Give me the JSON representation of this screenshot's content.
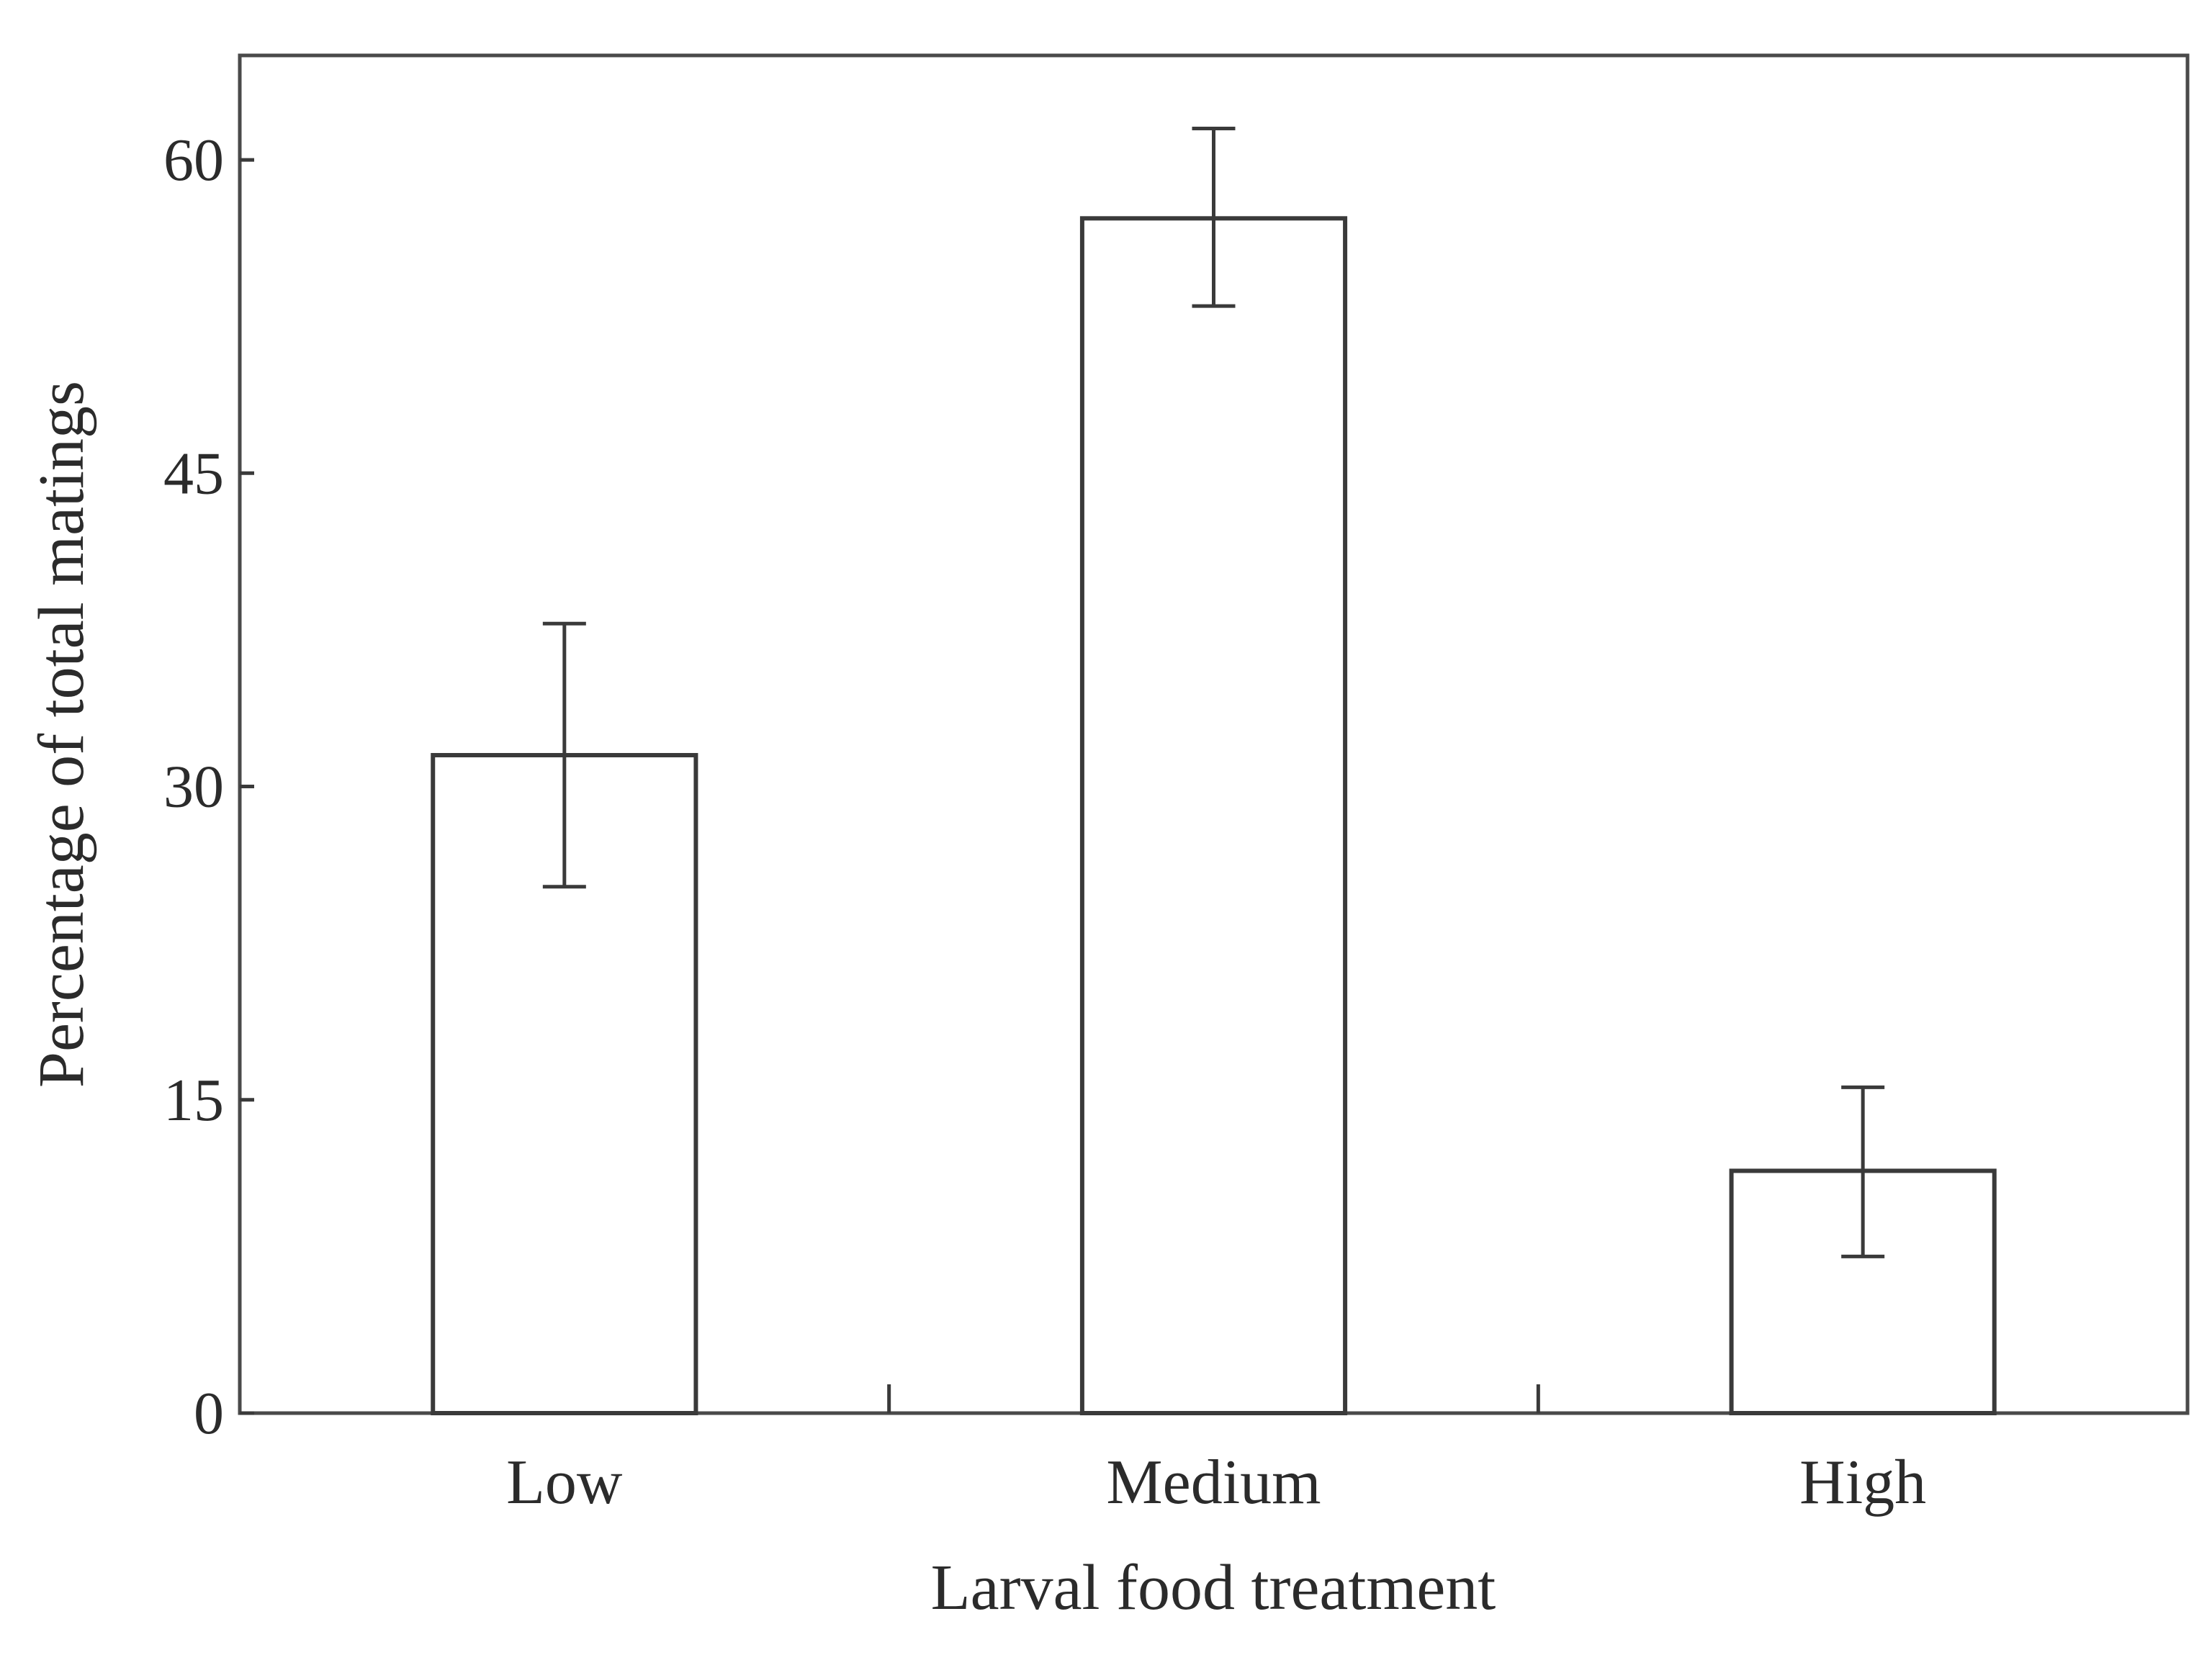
{
  "chart_data": {
    "type": "bar",
    "title": "",
    "xlabel": "Larval food treatment",
    "ylabel": "Percentage of total matings",
    "categories": [
      "Low",
      "Medium",
      "High"
    ],
    "values": [
      31.5,
      57.2,
      11.6
    ],
    "error_low": [
      25.2,
      53.0,
      7.5
    ],
    "error_high": [
      37.8,
      61.5,
      15.6
    ],
    "ylim": [
      0,
      65
    ],
    "yticks": [
      0,
      15,
      30,
      45,
      60
    ],
    "grid": false,
    "legend": "none"
  }
}
